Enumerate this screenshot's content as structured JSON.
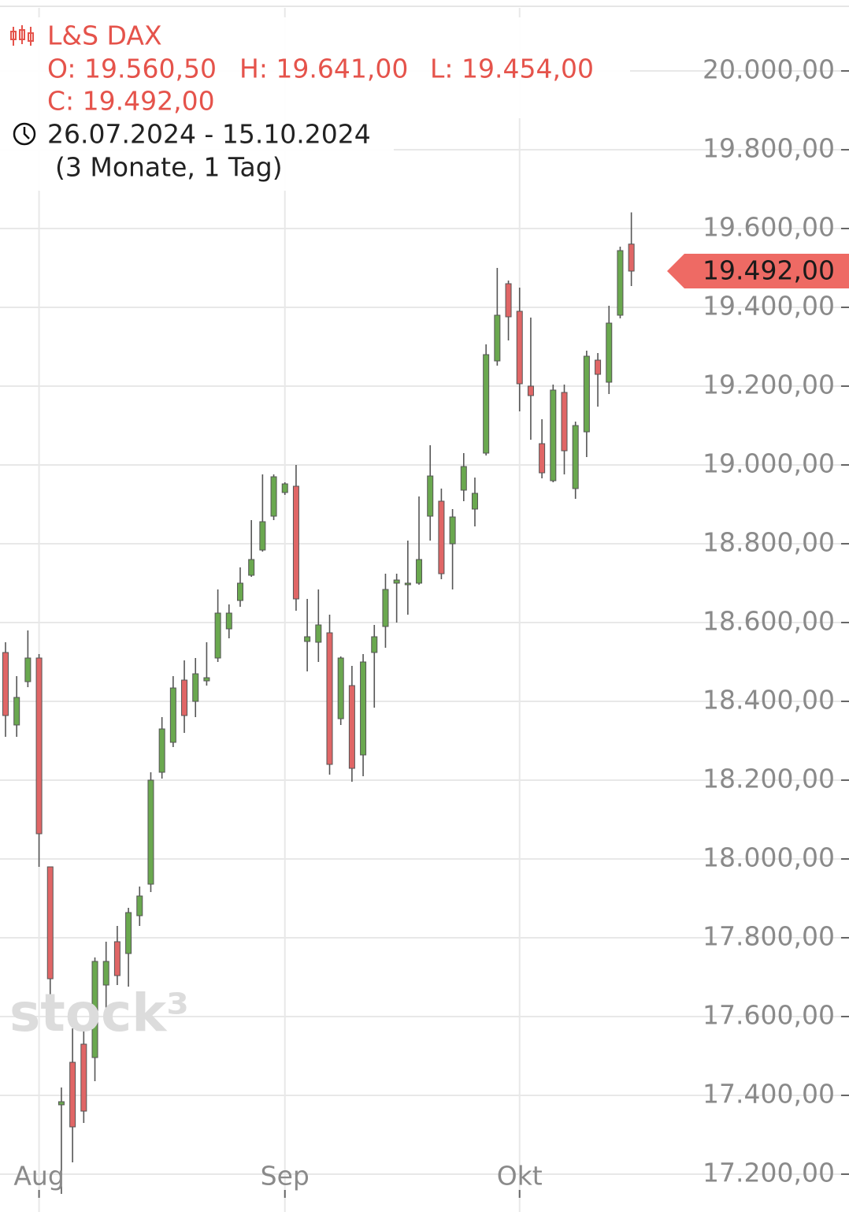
{
  "chart_data": {
    "type": "candlestick",
    "title": "L&S DAX",
    "ohlc_labels": [
      "O: 19.560,50",
      "H: 19.641,00",
      "L: 19.454,00",
      "C: 19.492,00"
    ],
    "period": "26.07.2024 - 15.10.2024",
    "period_length": "(3 Monate, 1 Tag)",
    "watermark": "stock³",
    "categories": [
      null,
      null,
      null,
      "Aug",
      null,
      null,
      null,
      null,
      null,
      null,
      null,
      null,
      null,
      null,
      null,
      null,
      null,
      null,
      null,
      null,
      null,
      null,
      null,
      null,
      null,
      "Sep",
      null,
      null,
      null,
      null,
      null,
      null,
      null,
      null,
      null,
      null,
      null,
      null,
      null,
      null,
      null,
      null,
      null,
      null,
      null,
      null,
      "Okt",
      null,
      null,
      null,
      null,
      null,
      null,
      null,
      null,
      null,
      null
    ],
    "open": [
      18524,
      18340,
      18450,
      18510,
      17980,
      17376,
      17484,
      17530,
      17496,
      17680,
      17790,
      17760,
      17856,
      17936,
      18220,
      18296,
      18454,
      18400,
      18452,
      18510,
      18584,
      18656,
      18720,
      18784,
      18870,
      18930,
      18946,
      18552,
      18550,
      18574,
      18356,
      18440,
      18264,
      18524,
      18590,
      18700,
      18696,
      18700,
      18870,
      18908,
      18800,
      18936,
      18888,
      19030,
      19264,
      19460,
      19390,
      19200,
      19054,
      18960,
      19184,
      18940,
      19084,
      19266,
      19210,
      19380,
      19560.5
    ],
    "high": [
      18550,
      18464,
      18580,
      18520,
      17980,
      17420,
      17570,
      17570,
      17750,
      17790,
      17830,
      17876,
      17930,
      18220,
      18360,
      18464,
      18504,
      18510,
      18550,
      18684,
      18646,
      18740,
      18860,
      18976,
      18976,
      18956,
      19000,
      18660,
      18684,
      18620,
      18514,
      18490,
      18520,
      18594,
      18724,
      18724,
      18808,
      18920,
      19050,
      18940,
      18888,
      19030,
      18968,
      19306,
      19500,
      19468,
      19450,
      19374,
      19116,
      19204,
      19204,
      19110,
      19290,
      19284,
      19404,
      19554,
      19641
    ],
    "low": [
      18310,
      18310,
      18436,
      17980,
      17640,
      17150,
      17230,
      17330,
      17436,
      17620,
      17680,
      17676,
      17830,
      17916,
      18204,
      18284,
      18320,
      18360,
      18440,
      18500,
      18560,
      18640,
      18716,
      18780,
      18860,
      18924,
      18630,
      18476,
      18500,
      18214,
      18340,
      18196,
      18210,
      18384,
      18536,
      18600,
      18620,
      18696,
      18808,
      18710,
      18684,
      18908,
      18844,
      19024,
      19252,
      19316,
      19136,
      19064,
      18966,
      18956,
      18976,
      18914,
      19020,
      19148,
      19180,
      19372,
      19454
    ],
    "close": [
      18364,
      18410,
      18510,
      18064,
      17696,
      17384,
      17320,
      17360,
      17740,
      17740,
      17704,
      17864,
      17906,
      18200,
      18330,
      18434,
      18364,
      18470,
      18460,
      18624,
      18624,
      18700,
      18760,
      18856,
      18970,
      18952,
      18660,
      18564,
      18594,
      18240,
      18510,
      18230,
      18500,
      18564,
      18684,
      18708,
      18700,
      18760,
      18972,
      18724,
      18868,
      18996,
      18928,
      19280,
      19380,
      19376,
      19206,
      19176,
      18980,
      19190,
      19036,
      19100,
      19276,
      19230,
      19360,
      19544,
      19492
    ],
    "up_color": "#6aa84f",
    "down_color": "#e06666",
    "ylim": [
      17140,
      20160
    ],
    "yticks": [
      {
        "value": 17200,
        "label": "17.200,00"
      },
      {
        "value": 17400,
        "label": "17.400,00"
      },
      {
        "value": 17600,
        "label": "17.600,00"
      },
      {
        "value": 17800,
        "label": "17.800,00"
      },
      {
        "value": 18000,
        "label": "18.000,00"
      },
      {
        "value": 18200,
        "label": "18.200,00"
      },
      {
        "value": 18400,
        "label": "18.400,00"
      },
      {
        "value": 18600,
        "label": "18.600,00"
      },
      {
        "value": 18800,
        "label": "18.800,00"
      },
      {
        "value": 19000,
        "label": "19.000,00"
      },
      {
        "value": 19200,
        "label": "19.200,00"
      },
      {
        "value": 19400,
        "label": "19.400,00"
      },
      {
        "value": 19600,
        "label": "19.600,00"
      },
      {
        "value": 19800,
        "label": "19.800,00"
      },
      {
        "value": 20000,
        "label": "20.000,00"
      }
    ],
    "last_price": {
      "value": 19492,
      "label": "19.492,00"
    },
    "grid": true
  }
}
